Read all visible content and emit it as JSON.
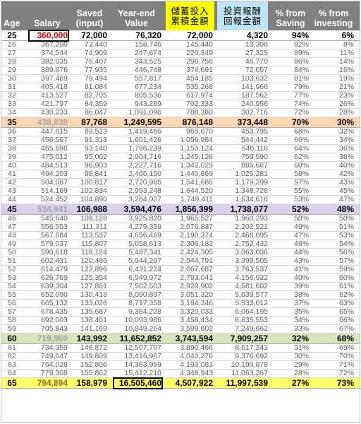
{
  "headers": [
    {
      "lines": [
        "Age"
      ]
    },
    {
      "lines": [
        "Salary"
      ]
    },
    {
      "lines": [
        "Saved",
        "(input)"
      ]
    },
    {
      "lines": [
        "Year-end",
        "Value"
      ]
    },
    {
      "lines": [
        "儲蓄投入",
        "累積金額"
      ]
    },
    {
      "lines": [
        "投資報酬",
        "回報金額"
      ]
    },
    {
      "lines": [
        "% from",
        "Saving"
      ]
    },
    {
      "lines": [
        "% from",
        "investing"
      ]
    }
  ],
  "rows": [
    [
      "25",
      "360,000",
      "72,000",
      "76,320",
      "72,000",
      "4,320",
      "94%",
      "6%"
    ],
    [
      "26",
      "367,200",
      "73,440",
      "158,746",
      "145,440",
      "13,306",
      "92%",
      "8%"
    ],
    [
      "27",
      "374,544",
      "74,909",
      "247,674",
      "220,349",
      "27,325",
      "89%",
      "11%"
    ],
    [
      "28",
      "382,035",
      "76,407",
      "343,525",
      "296,756",
      "46,770",
      "86%",
      "14%"
    ],
    [
      "29",
      "389,676",
      "77,935",
      "446,748",
      "374,691",
      "72,057",
      "84%",
      "16%"
    ],
    [
      "30",
      "397,469",
      "79,494",
      "557,817",
      "454,185",
      "103,632",
      "81%",
      "19%"
    ],
    [
      "31",
      "405,418",
      "81,084",
      "677,234",
      "535,268",
      "141,966",
      "79%",
      "21%"
    ],
    [
      "32",
      "413,527",
      "82,705",
      "805,536",
      "617,974",
      "187,562",
      "77%",
      "23%"
    ],
    [
      "33",
      "421,797",
      "84,359",
      "943,289",
      "702,333",
      "240,956",
      "74%",
      "26%"
    ],
    [
      "34",
      "430,233",
      "86,047",
      "1,091,096",
      "788,380",
      "302,716",
      "72%",
      "28%"
    ],
    [
      "35",
      "438,838",
      "87,768",
      "1,249,595",
      "876,148",
      "373,448",
      "70%",
      "30%"
    ],
    [
      "36",
      "447,615",
      "89,523",
      "1,419,466",
      "965,670",
      "453,795",
      "68%",
      "32%"
    ],
    [
      "37",
      "456,567",
      "91,313",
      "1,601,426",
      "1,056,984",
      "544,442",
      "66%",
      "34%"
    ],
    [
      "38",
      "465,698",
      "93,140",
      "1,796,239",
      "1,150,124",
      "646,116",
      "64%",
      "36%"
    ],
    [
      "39",
      "475,012",
      "95,002",
      "2,004,716",
      "1,245,126",
      "759,590",
      "62%",
      "38%"
    ],
    [
      "40",
      "484,513",
      "96,903",
      "2,227,716",
      "1,342,029",
      "885,687",
      "60%",
      "40%"
    ],
    [
      "41",
      "494,203",
      "98,841",
      "2,466,150",
      "1,440,869",
      "1,025,281",
      "58%",
      "42%"
    ],
    [
      "42",
      "504,087",
      "100,817",
      "2,720,985",
      "1,541,686",
      "1,179,299",
      "57%",
      "43%"
    ],
    [
      "43",
      "514,169",
      "102,834",
      "2,993,248",
      "1,644,520",
      "1,348,728",
      "55%",
      "45%"
    ],
    [
      "44",
      "524,452",
      "104,890",
      "3,284,027",
      "1,749,411",
      "1,534,616",
      "53%",
      "47%"
    ],
    [
      "45",
      "534,941",
      "106,988",
      "3,594,476",
      "1,856,399",
      "1,738,077",
      "52%",
      "48%"
    ],
    [
      "46",
      "545,640",
      "109,128",
      "3,925,820",
      "1,965,527",
      "1,960,293",
      "50%",
      "50%"
    ],
    [
      "47",
      "556,553",
      "111,311",
      "4,279,359",
      "2,076,837",
      "2,202,521",
      "49%",
      "51%"
    ],
    [
      "48",
      "567,684",
      "113,537",
      "4,656,469",
      "2,190,374",
      "2,466,095",
      "47%",
      "53%"
    ],
    [
      "49",
      "579,037",
      "115,807",
      "5,058,613",
      "2,306,182",
      "2,752,432",
      "46%",
      "54%"
    ],
    [
      "50",
      "590,618",
      "118,124",
      "5,487,341",
      "2,424,305",
      "3,063,036",
      "44%",
      "56%"
    ],
    [
      "51",
      "602,431",
      "120,486",
      "5,944,297",
      "2,544,791",
      "3,399,505",
      "43%",
      "57%"
    ],
    [
      "52",
      "614,479",
      "122,896",
      "6,431,224",
      "2,667,687",
      "3,763,537",
      "41%",
      "59%"
    ],
    [
      "53",
      "626,769",
      "125,354",
      "6,949,972",
      "2,793,041",
      "4,156,932",
      "40%",
      "60%"
    ],
    [
      "54",
      "639,304",
      "127,861",
      "7,502,503",
      "2,920,902",
      "4,581,602",
      "39%",
      "61%"
    ],
    [
      "55",
      "652,090",
      "130,418",
      "8,090,897",
      "3,051,320",
      "5,039,577",
      "38%",
      "62%"
    ],
    [
      "56",
      "665,132",
      "133,026",
      "8,717,358",
      "3,184,346",
      "5,533,012",
      "37%",
      "63%"
    ],
    [
      "57",
      "678,435",
      "135,687",
      "9,384,228",
      "3,320,033",
      "6,064,195",
      "35%",
      "65%"
    ],
    [
      "58",
      "692,003",
      "138,401",
      "10,093,986",
      "3,458,434",
      "6,635,553",
      "34%",
      "66%"
    ],
    [
      "59",
      "705,843",
      "141,169",
      "10,849,264",
      "3,599,602",
      "7,249,662",
      "33%",
      "67%"
    ],
    [
      "60",
      "719,960",
      "143,992",
      "11,652,852",
      "3,743,594",
      "7,909,257",
      "32%",
      "68%"
    ],
    [
      "61",
      "734,359",
      "146,872",
      "12,507,707",
      "3,890,466",
      "8,617,241",
      "31%",
      "69%"
    ],
    [
      "62",
      "749,047",
      "149,809",
      "13,416,967",
      "4,040,276",
      "9,376,692",
      "30%",
      "70%"
    ],
    [
      "63",
      "764,028",
      "152,806",
      "14,383,959",
      "4,193,081",
      "10,190,878",
      "29%",
      "71%"
    ],
    [
      "64",
      "779,308",
      "155,862",
      "15,412,210",
      "4,348,943",
      "11,063,267",
      "28%",
      "72%"
    ],
    [
      "65",
      "794,894",
      "158,979",
      "16,505,460",
      "4,507,922",
      "11,997,539",
      "27%",
      "73%"
    ]
  ],
  "highlight_ages": [
    "25",
    "35",
    "45",
    "60",
    "65"
  ],
  "colors": {
    "header_bg": "#808080",
    "header_cjk_yellow": "#ffff00",
    "header_cjk_blue": "#bfe4f5",
    "row_35": "#fbd7b5",
    "row_45": "#d9d2e9",
    "row_60": "#d8e4bc",
    "row_65": "#ffff66",
    "boxed_salary_text": "#e00000"
  }
}
